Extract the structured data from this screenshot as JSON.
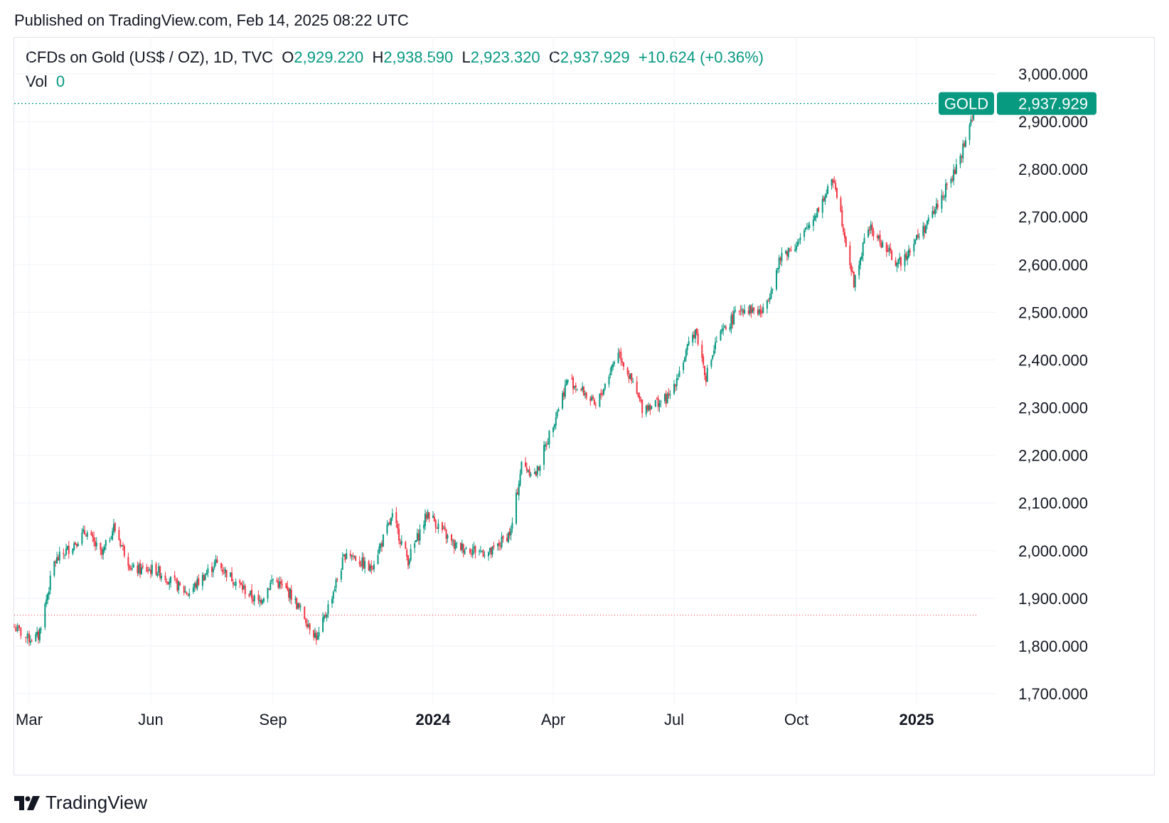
{
  "published": "Published on TradingView.com, Feb 14, 2025 08:22 UTC",
  "header": {
    "symbol": "CFDs on Gold (US$ / OZ), 1D, TVC",
    "o_label": "O",
    "o_value": "2,929.220",
    "h_label": "H",
    "h_value": "2,938.590",
    "l_label": "L",
    "l_value": "2,923.320",
    "c_label": "C",
    "c_value": "2,937.929",
    "change": "+10.624 (+0.36%)",
    "vol_label": "Vol",
    "vol_value": "0"
  },
  "price_badge": {
    "name": "GOLD",
    "value": "2,937.929"
  },
  "brand": "TradingView",
  "colors": {
    "up": "#089981",
    "down": "#f23645",
    "grid": "#f0f3fa",
    "text": "#131722"
  },
  "chart_data": {
    "type": "candlestick",
    "ylim": [
      1700,
      3000
    ],
    "y_ticks": [
      "1,700.000",
      "1,800.000",
      "1,900.000",
      "2,000.000",
      "2,100.000",
      "2,200.000",
      "2,300.000",
      "2,400.000",
      "2,500.000",
      "2,600.000",
      "2,700.000",
      "2,800.000",
      "2,900.000",
      "3,000.000"
    ],
    "x_ticks": [
      {
        "label": "Mar",
        "date": "2023-03-01",
        "bold": false
      },
      {
        "label": "Jun",
        "date": "2023-06-01",
        "bold": false
      },
      {
        "label": "Sep",
        "date": "2023-09-01",
        "bold": false
      },
      {
        "label": "2024",
        "date": "2024-01-01",
        "bold": true
      },
      {
        "label": "Apr",
        "date": "2024-04-01",
        "bold": false
      },
      {
        "label": "Jul",
        "date": "2024-07-01",
        "bold": false
      },
      {
        "label": "Oct",
        "date": "2024-10-01",
        "bold": false
      },
      {
        "label": "2025",
        "date": "2025-01-01",
        "bold": true
      }
    ],
    "last_price": 2937.929,
    "reference_line": 1865,
    "price_path": [
      {
        "date": "2023-02-20",
        "price": 1840
      },
      {
        "date": "2023-02-28",
        "price": 1815
      },
      {
        "date": "2023-03-08",
        "price": 1820
      },
      {
        "date": "2023-03-20",
        "price": 1975
      },
      {
        "date": "2023-04-13",
        "price": 2040
      },
      {
        "date": "2023-04-25",
        "price": 1990
      },
      {
        "date": "2023-05-04",
        "price": 2050
      },
      {
        "date": "2023-05-18",
        "price": 1960
      },
      {
        "date": "2023-06-05",
        "price": 1960
      },
      {
        "date": "2023-06-29",
        "price": 1910
      },
      {
        "date": "2023-07-20",
        "price": 1975
      },
      {
        "date": "2023-08-21",
        "price": 1890
      },
      {
        "date": "2023-09-01",
        "price": 1940
      },
      {
        "date": "2023-09-14",
        "price": 1910
      },
      {
        "date": "2023-10-05",
        "price": 1815
      },
      {
        "date": "2023-10-27",
        "price": 2000
      },
      {
        "date": "2023-11-14",
        "price": 1960
      },
      {
        "date": "2023-12-01",
        "price": 2070
      },
      {
        "date": "2023-12-13",
        "price": 1980
      },
      {
        "date": "2023-12-28",
        "price": 2080
      },
      {
        "date": "2024-01-17",
        "price": 2010
      },
      {
        "date": "2024-02-14",
        "price": 1995
      },
      {
        "date": "2024-02-29",
        "price": 2040
      },
      {
        "date": "2024-03-08",
        "price": 2180
      },
      {
        "date": "2024-03-19",
        "price": 2160
      },
      {
        "date": "2024-04-12",
        "price": 2360
      },
      {
        "date": "2024-04-25",
        "price": 2330
      },
      {
        "date": "2024-05-03",
        "price": 2300
      },
      {
        "date": "2024-05-20",
        "price": 2420
      },
      {
        "date": "2024-06-07",
        "price": 2300
      },
      {
        "date": "2024-06-27",
        "price": 2320
      },
      {
        "date": "2024-07-17",
        "price": 2465
      },
      {
        "date": "2024-07-25",
        "price": 2365
      },
      {
        "date": "2024-08-02",
        "price": 2440
      },
      {
        "date": "2024-08-20",
        "price": 2510
      },
      {
        "date": "2024-09-06",
        "price": 2500
      },
      {
        "date": "2024-09-20",
        "price": 2620
      },
      {
        "date": "2024-10-04",
        "price": 2650
      },
      {
        "date": "2024-10-30",
        "price": 2780
      },
      {
        "date": "2024-11-14",
        "price": 2560
      },
      {
        "date": "2024-11-25",
        "price": 2680
      },
      {
        "date": "2024-12-18",
        "price": 2600
      },
      {
        "date": "2025-01-10",
        "price": 2690
      },
      {
        "date": "2025-01-31",
        "price": 2800
      },
      {
        "date": "2025-02-11",
        "price": 2900
      },
      {
        "date": "2025-02-14",
        "price": 2937.929
      }
    ]
  }
}
